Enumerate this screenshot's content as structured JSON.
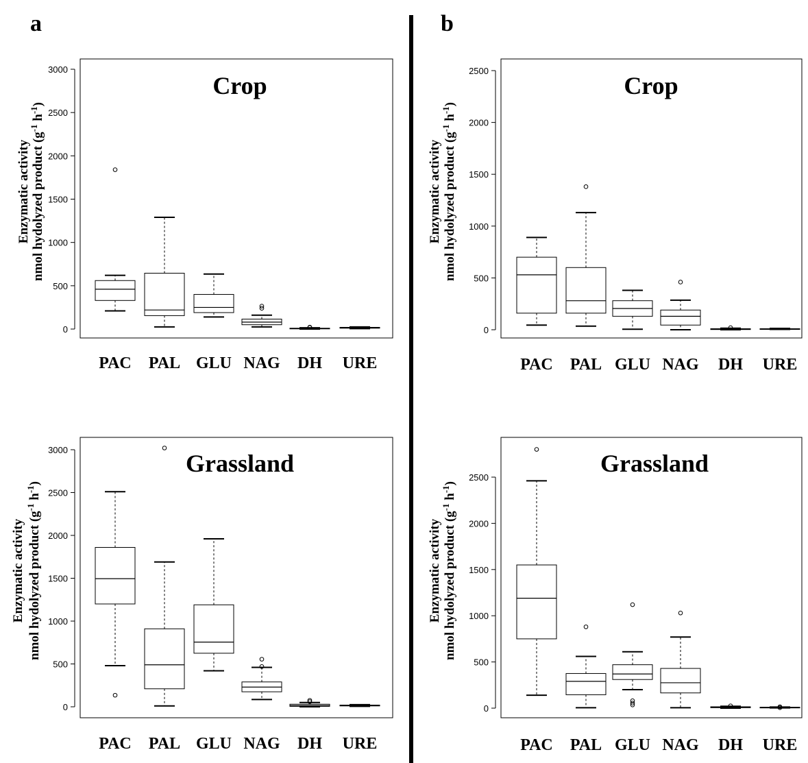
{
  "divider": {
    "color": "#000000"
  },
  "chart_data": [
    {
      "panel": "a",
      "title": "Crop",
      "type": "box",
      "ylabel": {
        "line1": "Enzymatic activity",
        "line2": "nmol hydolyzed product (g",
        "sup1": "-1",
        "mid": " h",
        "sup2": "-1",
        "end": ")"
      },
      "ylim": [
        0,
        3050
      ],
      "yticks": [
        "0",
        "500",
        "1000",
        "1500",
        "2000",
        "2500",
        "3000"
      ],
      "categories": [
        "PAC",
        "PAL",
        "GLU",
        "NAG",
        "DH",
        "URE"
      ],
      "boxes": [
        {
          "min": 210,
          "q1": 330,
          "median": 460,
          "q3": 560,
          "max": 620,
          "outliers": [
            1840
          ]
        },
        {
          "min": 25,
          "q1": 155,
          "median": 220,
          "q3": 645,
          "max": 1290,
          "outliers": []
        },
        {
          "min": 140,
          "q1": 190,
          "median": 250,
          "q3": 400,
          "max": 635,
          "outliers": []
        },
        {
          "min": 25,
          "q1": 50,
          "median": 80,
          "q3": 115,
          "max": 160,
          "outliers": [
            240,
            265
          ]
        },
        {
          "min": 0,
          "q1": 3,
          "median": 6,
          "q3": 10,
          "max": 15,
          "outliers": [
            18,
            22
          ]
        },
        {
          "min": 5,
          "q1": 10,
          "median": 15,
          "q3": 20,
          "max": 25,
          "outliers": []
        }
      ]
    },
    {
      "panel": "b",
      "title": "Crop",
      "type": "box",
      "ylabel": {
        "line1": "Enzymatic activity",
        "line2": "nmol hydolyzed product (g",
        "sup1": "-1",
        "mid": " h",
        "sup2": "-1",
        "end": ")"
      },
      "ylim": [
        0,
        2600
      ],
      "yticks": [
        "0",
        "500",
        "1000",
        "1500",
        "2000",
        "2500"
      ],
      "categories": [
        "PAC",
        "PAL",
        "GLU",
        "NAG",
        "DH",
        "URE"
      ],
      "boxes": [
        {
          "min": 45,
          "q1": 160,
          "median": 530,
          "q3": 700,
          "max": 890,
          "outliers": []
        },
        {
          "min": 35,
          "q1": 160,
          "median": 280,
          "q3": 600,
          "max": 1130,
          "outliers": [
            1380
          ]
        },
        {
          "min": 5,
          "q1": 130,
          "median": 205,
          "q3": 280,
          "max": 380,
          "outliers": []
        },
        {
          "min": 0,
          "q1": 45,
          "median": 130,
          "q3": 190,
          "max": 285,
          "outliers": [
            460
          ]
        },
        {
          "min": 0,
          "q1": 2,
          "median": 5,
          "q3": 10,
          "max": 15,
          "outliers": [
            20
          ]
        },
        {
          "min": 3,
          "q1": 6,
          "median": 8,
          "q3": 10,
          "max": 13,
          "outliers": []
        }
      ]
    },
    {
      "panel": "",
      "title": "Grassland",
      "type": "box",
      "ylabel": {
        "line1": "Enzymatic activity",
        "line2": "nmol hydolyzed product (g",
        "sup1": "-1",
        "mid": " h",
        "sup2": "-1",
        "end": ")"
      },
      "ylim": [
        0,
        3250
      ],
      "yticks": [
        "0",
        "500",
        "1000",
        "1500",
        "2000",
        "2500",
        "3000"
      ],
      "categories": [
        "PAC",
        "PAL",
        "GLU",
        "NAG",
        "DH",
        "URE"
      ],
      "boxes": [
        {
          "min": 480,
          "q1": 1200,
          "median": 1495,
          "q3": 1860,
          "max": 2510,
          "outliers": [
            135
          ]
        },
        {
          "min": 10,
          "q1": 210,
          "median": 490,
          "q3": 910,
          "max": 1690,
          "outliers": [
            3020
          ]
        },
        {
          "min": 420,
          "q1": 625,
          "median": 755,
          "q3": 1190,
          "max": 1960,
          "outliers": []
        },
        {
          "min": 85,
          "q1": 175,
          "median": 230,
          "q3": 290,
          "max": 460,
          "outliers": [
            470,
            555
          ]
        },
        {
          "min": 0,
          "q1": 5,
          "median": 15,
          "q3": 30,
          "max": 50,
          "outliers": [
            60,
            75
          ]
        },
        {
          "min": 5,
          "q1": 10,
          "median": 15,
          "q3": 20,
          "max": 25,
          "outliers": []
        }
      ]
    },
    {
      "panel": "",
      "title": "Grassland",
      "type": "box",
      "ylabel": {
        "line1": "Enzymatic activity",
        "line2": "nmol hydolyzed product (g",
        "sup1": "-1",
        "mid": " h",
        "sup2": "-1",
        "end": ")"
      },
      "ylim": [
        0,
        2950
      ],
      "yticks": [
        "0",
        "500",
        "1000",
        "1500",
        "2000",
        "2500"
      ],
      "categories": [
        "PAC",
        "PAL",
        "GLU",
        "NAG",
        "DH",
        "URE"
      ],
      "boxes": [
        {
          "min": 140,
          "q1": 750,
          "median": 1190,
          "q3": 1550,
          "max": 2460,
          "outliers": [
            2800
          ]
        },
        {
          "min": 5,
          "q1": 145,
          "median": 290,
          "q3": 375,
          "max": 560,
          "outliers": [
            880
          ]
        },
        {
          "min": 200,
          "q1": 310,
          "median": 370,
          "q3": 470,
          "max": 610,
          "outliers": [
            1120,
            80,
            55,
            35
          ]
        },
        {
          "min": 5,
          "q1": 165,
          "median": 275,
          "q3": 430,
          "max": 770,
          "outliers": [
            1030
          ]
        },
        {
          "min": 0,
          "q1": 5,
          "median": 10,
          "q3": 15,
          "max": 20,
          "outliers": [
            25
          ]
        },
        {
          "min": 3,
          "q1": 6,
          "median": 8,
          "q3": 10,
          "max": 12,
          "outliers": [
            15,
            5
          ]
        }
      ]
    }
  ]
}
